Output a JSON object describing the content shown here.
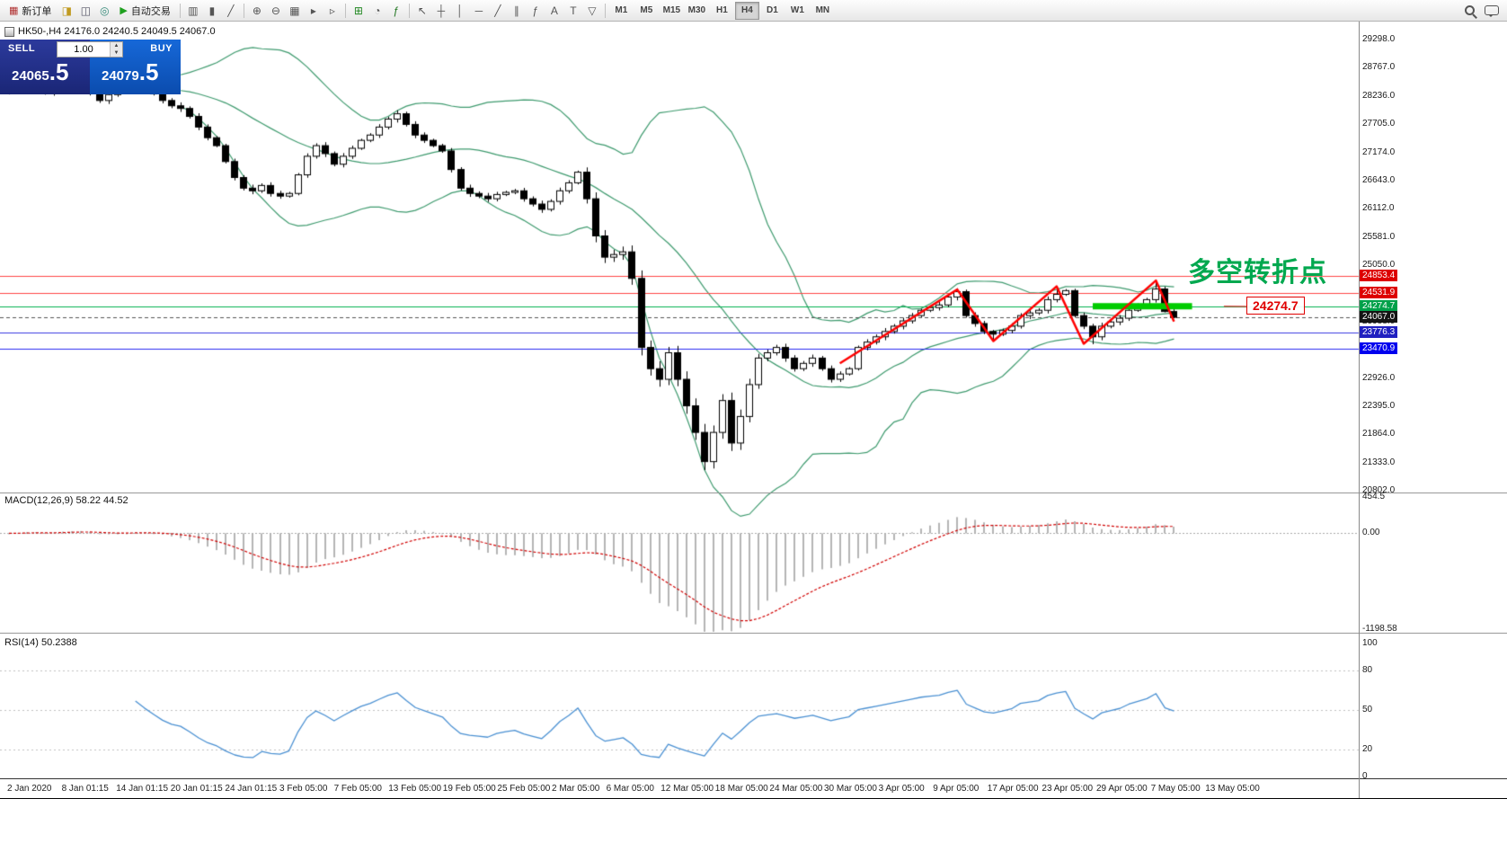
{
  "toolbar": {
    "new_order_label": "新订单",
    "autotrade_label": "自动交易",
    "timeframes": [
      "M1",
      "M5",
      "M15",
      "M30",
      "H1",
      "H4",
      "D1",
      "W1",
      "MN"
    ],
    "active_timeframe": "H4",
    "items": [
      {
        "t": "btn",
        "n": "new-order-button",
        "g": "▦",
        "gc": "#b03030",
        "label": "新订单"
      },
      {
        "t": "icon",
        "n": "trade-history-icon",
        "g": "◨",
        "gc": "#c09a20"
      },
      {
        "t": "icon",
        "n": "market-watch-icon",
        "g": "◫",
        "gc": "#556"
      },
      {
        "t": "icon",
        "n": "navigator-icon",
        "g": "◎",
        "gc": "#387"
      },
      {
        "t": "btn",
        "n": "autotrading-button",
        "g": "▶",
        "gc": "#1fa01f",
        "label": "自动交易"
      },
      {
        "t": "sep"
      },
      {
        "t": "icon",
        "n": "bar-chart-icon",
        "g": "▥"
      },
      {
        "t": "icon",
        "n": "candlestick-chart-icon",
        "g": "▮"
      },
      {
        "t": "icon",
        "n": "line-chart-icon",
        "g": "╱"
      },
      {
        "t": "sep"
      },
      {
        "t": "icon",
        "n": "zoom-in-icon",
        "g": "⊕"
      },
      {
        "t": "icon",
        "n": "zoom-out-icon",
        "g": "⊖"
      },
      {
        "t": "icon",
        "n": "grid-icon",
        "g": "▦"
      },
      {
        "t": "icon",
        "n": "auto-scroll-icon",
        "g": "▸"
      },
      {
        "t": "icon",
        "n": "chart-shift-icon",
        "g": "▹"
      },
      {
        "t": "sep"
      },
      {
        "t": "icon",
        "n": "new-chart-icon",
        "g": "⊞",
        "gc": "#282"
      },
      {
        "t": "icon",
        "n": "period-icon",
        "g": "◔"
      },
      {
        "t": "icon",
        "n": "indicators-icon",
        "g": "ƒ",
        "gc": "#272"
      },
      {
        "t": "sep"
      },
      {
        "t": "icon",
        "n": "cursor-icon",
        "g": "↖"
      },
      {
        "t": "icon",
        "n": "crosshair-icon",
        "g": "┼"
      },
      {
        "t": "icon",
        "n": "vertical-line-icon",
        "g": "│"
      },
      {
        "t": "icon",
        "n": "horizontal-line-icon",
        "g": "─"
      },
      {
        "t": "icon",
        "n": "trendline-icon",
        "g": "╱"
      },
      {
        "t": "icon",
        "n": "channel-icon",
        "g": "∥"
      },
      {
        "t": "icon",
        "n": "fibonacci-icon",
        "g": "ƒ"
      },
      {
        "t": "icon",
        "n": "text-icon",
        "g": "A"
      },
      {
        "t": "icon",
        "n": "label-icon",
        "g": "T"
      },
      {
        "t": "icon",
        "n": "shapes-icon",
        "g": "▽"
      },
      {
        "t": "sep"
      }
    ]
  },
  "chart": {
    "header": "HK50-,H4 24176.0 24240.5 24049.5 24067.0",
    "symbol": "HK50-",
    "period": "H4",
    "ohlc": {
      "open": "24176.0",
      "high": "24240.5",
      "low": "24049.5",
      "close": "24067.0"
    }
  },
  "trade_panel": {
    "sell_label": "SELL",
    "buy_label": "BUY",
    "volume": "1.00",
    "sell_price": "24065.5",
    "buy_price": "24079.5",
    "sell_price_main": "24065",
    "sell_price_frac": ".5",
    "buy_price_main": "24079",
    "buy_price_frac": ".5"
  },
  "annotation": {
    "text": "多空转折点",
    "price_label": "24274.7"
  },
  "chart_data": {
    "type": "candlestick",
    "symbol": "HK50-",
    "timeframe": "H4",
    "price_axis_ticks": [
      29298.0,
      28767.0,
      28236.0,
      27705.0,
      27174.0,
      26643.0,
      26112.0,
      25581.0,
      25050.0,
      24519.0,
      23988.0,
      23457.0,
      22926.0,
      22395.0,
      21864.0,
      21333.0,
      20802.0
    ],
    "price_range_top_label": 29298.0,
    "price_range_bottom_label": 20802.0,
    "levels": [
      {
        "price": 24853.4,
        "label": "24853.4",
        "line": "#ff4444",
        "bg": "#dd0000",
        "style": "solid"
      },
      {
        "price": 24531.9,
        "label": "24531.9",
        "line": "#ff4444",
        "bg": "#dd0000",
        "style": "solid"
      },
      {
        "price": 24274.7,
        "label": "24274.7",
        "line": "#00b14f",
        "bg": "#00a14a",
        "style": "solid"
      },
      {
        "price": 24067.0,
        "label": "24067.0",
        "line": "#555555",
        "bg": "#141414",
        "style": "dash"
      },
      {
        "price": 23776.3,
        "label": "23776.3",
        "line": "#3a3ae0",
        "bg": "#2020c0",
        "style": "solid"
      },
      {
        "price": 23470.9,
        "label": "23470.9",
        "line": "#2a2af0",
        "bg": "#0000ee",
        "style": "solid"
      }
    ],
    "bollinger": {
      "period": 20,
      "deviation": 2,
      "color": "#3e9a6e"
    },
    "zigzag": [
      [
        92,
        23200
      ],
      [
        105,
        24590
      ],
      [
        109,
        23620
      ],
      [
        116,
        24650
      ],
      [
        119,
        23570
      ],
      [
        127,
        24760
      ],
      [
        129,
        23990
      ]
    ],
    "support_segment": {
      "i1": 120,
      "i2": 131,
      "price": 24274.7,
      "color": "#00cc00",
      "width": 7
    },
    "candles": [
      [
        28300,
        28385,
        28265,
        28350
      ],
      [
        28350,
        28475,
        28295,
        28420
      ],
      [
        28420,
        28525,
        28375,
        28480
      ],
      [
        28480,
        28545,
        28325,
        28390
      ],
      [
        28390,
        28430,
        28260,
        28300
      ],
      [
        28300,
        28470,
        28240,
        28410
      ],
      [
        28410,
        28570,
        28360,
        28520
      ],
      [
        28520,
        28550,
        28460,
        28490
      ],
      [
        28490,
        28525,
        28425,
        28460
      ],
      [
        28460,
        28515,
        28245,
        28300
      ],
      [
        28300,
        28345,
        28105,
        28150
      ],
      [
        28150,
        28325,
        28085,
        28260
      ],
      [
        28260,
        28420,
        28220,
        28380
      ],
      [
        28380,
        28510,
        28320,
        28450
      ],
      [
        28450,
        28570,
        28400,
        28520
      ],
      [
        28520,
        28550,
        28370,
        28400
      ],
      [
        28400,
        28435,
        28245,
        28280
      ],
      [
        28280,
        28335,
        28095,
        28150
      ],
      [
        28150,
        28195,
        28005,
        28050
      ],
      [
        28050,
        28115,
        27935,
        28000
      ],
      [
        28000,
        28040,
        27810,
        27850
      ],
      [
        27850,
        27910,
        27590,
        27650
      ],
      [
        27650,
        27700,
        27400,
        27450
      ],
      [
        27450,
        27480,
        27270,
        27300
      ],
      [
        27300,
        27335,
        26965,
        27000
      ],
      [
        27000,
        27055,
        26645,
        26700
      ],
      [
        26700,
        26745,
        26455,
        26500
      ],
      [
        26500,
        26565,
        26385,
        26450
      ],
      [
        26450,
        26590,
        26410,
        26550
      ],
      [
        26550,
        26610,
        26340,
        26400
      ],
      [
        26400,
        26450,
        26300,
        26350
      ],
      [
        26350,
        26430,
        26320,
        26400
      ],
      [
        26400,
        26785,
        26365,
        26750
      ],
      [
        26750,
        27155,
        26695,
        27100
      ],
      [
        27100,
        27345,
        27055,
        27300
      ],
      [
        27300,
        27365,
        27085,
        27150
      ],
      [
        27150,
        27190,
        26910,
        26950
      ],
      [
        26950,
        27160,
        26890,
        27100
      ],
      [
        27100,
        27300,
        27050,
        27250
      ],
      [
        27250,
        27430,
        27220,
        27400
      ],
      [
        27400,
        27535,
        27365,
        27500
      ],
      [
        27500,
        27705,
        27445,
        27650
      ],
      [
        27650,
        27845,
        27605,
        27800
      ],
      [
        27800,
        27965,
        27735,
        27900
      ],
      [
        27900,
        27940,
        27660,
        27700
      ],
      [
        27700,
        27760,
        27440,
        27500
      ],
      [
        27500,
        27550,
        27350,
        27400
      ],
      [
        27400,
        27430,
        27270,
        27300
      ],
      [
        27300,
        27335,
        27165,
        27200
      ],
      [
        27200,
        27255,
        26795,
        26850
      ],
      [
        26850,
        26895,
        26455,
        26500
      ],
      [
        26500,
        26565,
        26335,
        26400
      ],
      [
        26400,
        26440,
        26310,
        26350
      ],
      [
        26350,
        26410,
        26240,
        26300
      ],
      [
        26300,
        26430,
        26250,
        26380
      ],
      [
        26380,
        26450,
        26350,
        26420
      ],
      [
        26420,
        26485,
        26385,
        26450
      ],
      [
        26450,
        26505,
        26245,
        26300
      ],
      [
        26300,
        26345,
        26155,
        26200
      ],
      [
        26200,
        26265,
        26035,
        26100
      ],
      [
        26100,
        26290,
        26060,
        26250
      ],
      [
        26250,
        26510,
        26190,
        26450
      ],
      [
        26450,
        26650,
        26400,
        26600
      ],
      [
        26600,
        26830,
        26570,
        26800
      ],
      [
        26800,
        26890,
        26210,
        26300
      ],
      [
        26300,
        26420,
        25480,
        25600
      ],
      [
        25600,
        25710,
        25090,
        25200
      ],
      [
        25200,
        25340,
        25110,
        25250
      ],
      [
        25250,
        25400,
        25150,
        25300
      ],
      [
        25300,
        25420,
        24680,
        24800
      ],
      [
        24800,
        24950,
        23350,
        23500
      ],
      [
        23500,
        23630,
        22970,
        23100
      ],
      [
        23100,
        23240,
        22760,
        22900
      ],
      [
        22900,
        23510,
        22790,
        23400
      ],
      [
        23400,
        23530,
        22770,
        22900
      ],
      [
        22900,
        23050,
        22250,
        22400
      ],
      [
        22400,
        22540,
        21760,
        21900
      ],
      [
        21900,
        22060,
        21190,
        21350
      ],
      [
        21350,
        22030,
        21220,
        21900
      ],
      [
        21900,
        22620,
        21780,
        22500
      ],
      [
        22500,
        22650,
        21550,
        21700
      ],
      [
        21700,
        22330,
        21570,
        22200
      ],
      [
        22200,
        22910,
        22090,
        22800
      ],
      [
        22800,
        23380,
        22720,
        23300
      ],
      [
        23300,
        23460,
        23240,
        23400
      ],
      [
        23400,
        23550,
        23350,
        23500
      ],
      [
        23500,
        23570,
        23230,
        23300
      ],
      [
        23300,
        23355,
        23045,
        23100
      ],
      [
        23100,
        23245,
        23055,
        23200
      ],
      [
        23200,
        23365,
        23135,
        23300
      ],
      [
        23300,
        23340,
        23060,
        23100
      ],
      [
        23100,
        23160,
        22840,
        22900
      ],
      [
        22900,
        23050,
        22850,
        23000
      ],
      [
        23000,
        23130,
        22970,
        23100
      ],
      [
        23100,
        23535,
        23065,
        23500
      ],
      [
        23500,
        23655,
        23445,
        23600
      ],
      [
        23600,
        23745,
        23555,
        23700
      ],
      [
        23700,
        23865,
        23635,
        23800
      ],
      [
        23800,
        23940,
        23760,
        23900
      ],
      [
        23900,
        24060,
        23840,
        24000
      ],
      [
        24000,
        24150,
        23950,
        24100
      ],
      [
        24100,
        24230,
        24070,
        24200
      ],
      [
        24200,
        24285,
        24165,
        24250
      ],
      [
        24250,
        24355,
        24195,
        24300
      ],
      [
        24300,
        24495,
        24255,
        24450
      ],
      [
        24450,
        24615,
        24385,
        24550
      ],
      [
        24550,
        24590,
        24060,
        24100
      ],
      [
        24100,
        24160,
        23890,
        23950
      ],
      [
        23950,
        24000,
        23750,
        23800
      ],
      [
        23800,
        23830,
        23640,
        23750
      ],
      [
        23750,
        23855,
        23715,
        23820
      ],
      [
        23820,
        23955,
        23765,
        23900
      ],
      [
        23900,
        24145,
        23855,
        24100
      ],
      [
        24100,
        24215,
        24035,
        24150
      ],
      [
        24150,
        24240,
        24110,
        24200
      ],
      [
        24200,
        24460,
        24140,
        24400
      ],
      [
        24400,
        24640,
        24350,
        24500
      ],
      [
        24500,
        24600,
        24470,
        24570
      ],
      [
        24570,
        24605,
        24065,
        24100
      ],
      [
        24100,
        24155,
        23845,
        23900
      ],
      [
        23900,
        23945,
        23560,
        23700
      ],
      [
        23700,
        23965,
        23635,
        23900
      ],
      [
        23900,
        24020,
        23860,
        23980
      ],
      [
        23980,
        24110,
        23920,
        24050
      ],
      [
        24050,
        24250,
        24000,
        24200
      ],
      [
        24200,
        24330,
        24170,
        24300
      ],
      [
        24300,
        24435,
        24265,
        24400
      ],
      [
        24400,
        24760,
        24345,
        24600
      ],
      [
        24600,
        24645,
        24160,
        24176
      ],
      [
        24176,
        24240.5,
        24049.5,
        24067
      ]
    ],
    "macd": {
      "label": "MACD(12,26,9) 58.22 44.52",
      "fast": 12,
      "slow": 26,
      "signal": 9,
      "values": [
        58.22,
        44.52
      ],
      "axis": [
        {
          "v": 454.5,
          "t": "454.5"
        },
        {
          "v": 0,
          "t": "0.00"
        },
        {
          "v": -1198.58,
          "t": "-1198.58"
        }
      ]
    },
    "rsi": {
      "label": "RSI(14) 50.2388",
      "period": 14,
      "value": 50.2388,
      "axis": [
        {
          "v": 100,
          "t": "100"
        },
        {
          "v": 80,
          "t": "80"
        },
        {
          "v": 50,
          "t": "50"
        },
        {
          "v": 20,
          "t": "20"
        },
        {
          "v": 0,
          "t": "0"
        }
      ],
      "levels": [
        80,
        50,
        20
      ]
    },
    "time_axis": [
      "2 Jan 2020",
      "8 Jan 01:15",
      "14 Jan 01:15",
      "20 Jan 01:15",
      "24 Jan 01:15",
      "3 Feb 05:00",
      "7 Feb 05:00",
      "13 Feb 05:00",
      "19 Feb 05:00",
      "25 Feb 05:00",
      "2 Mar 05:00",
      "6 Mar 05:00",
      "12 Mar 05:00",
      "18 Mar 05:00",
      "24 Mar 05:00",
      "30 Mar 05:00",
      "3 Apr 05:00",
      "9 Apr 05:00",
      "17 Apr 05:00",
      "23 Apr 05:00",
      "29 Apr 05:00",
      "7 May 05:00",
      "13 May 05:00"
    ]
  }
}
